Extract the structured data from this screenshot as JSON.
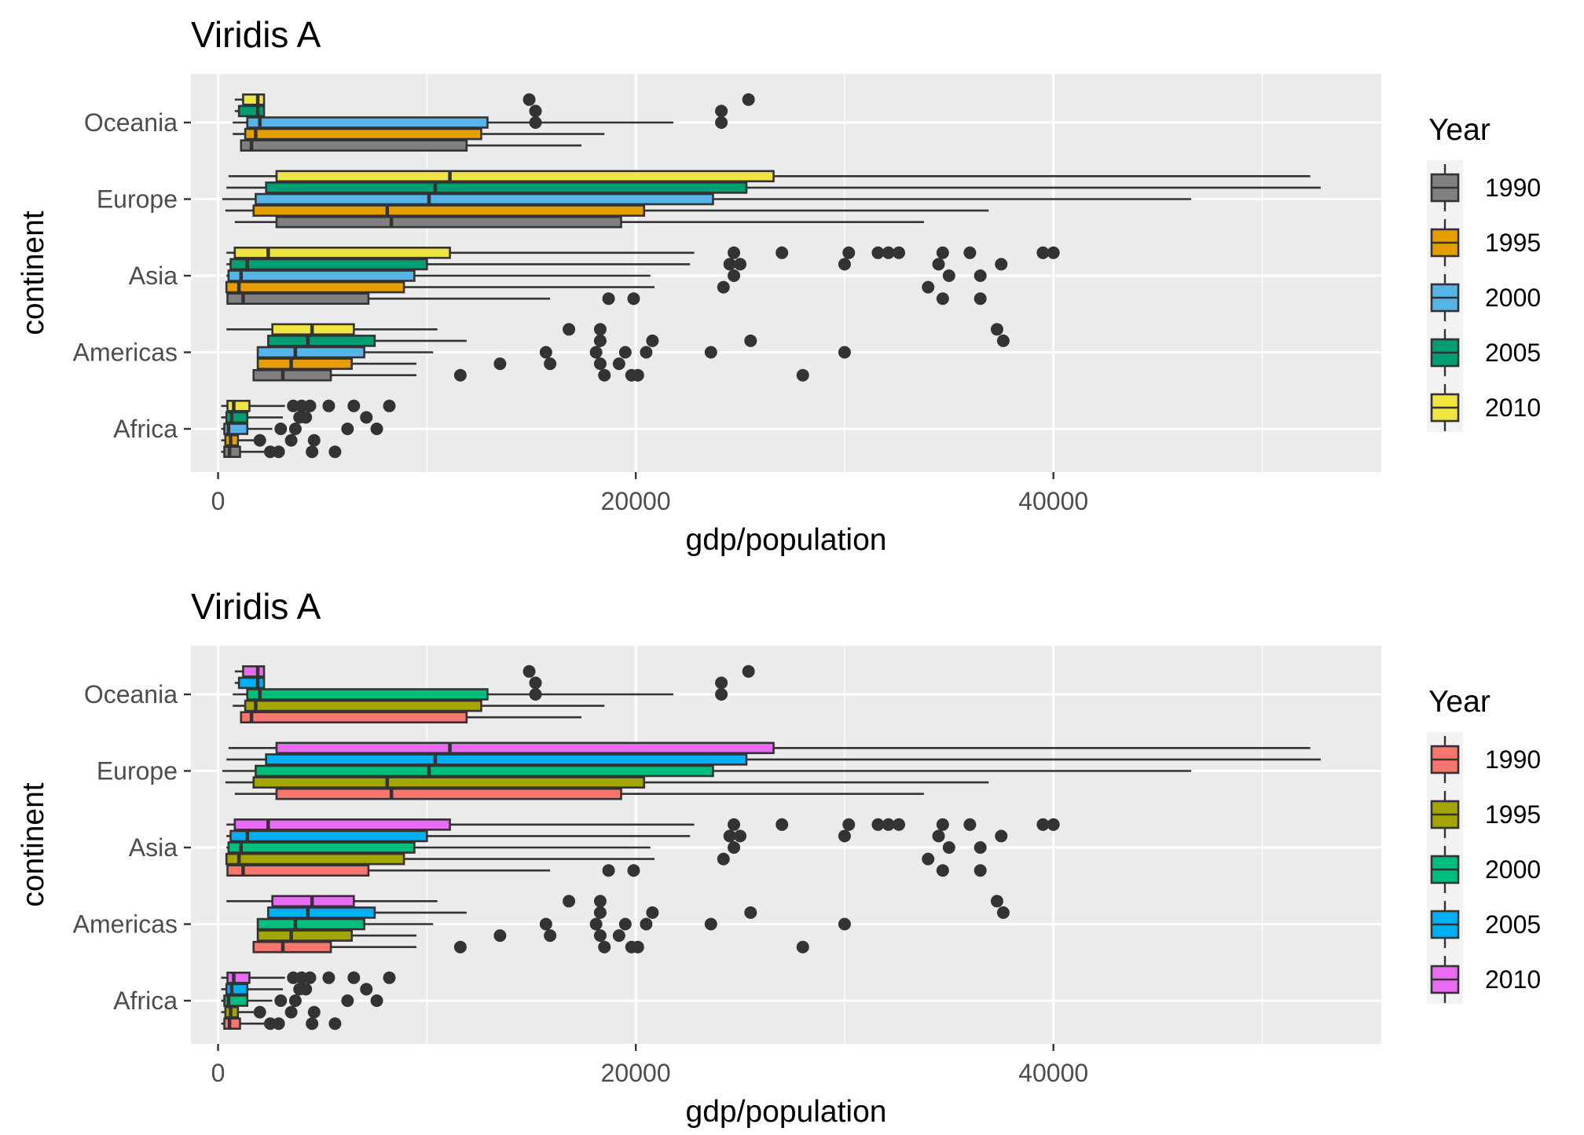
{
  "chart_data": [
    {
      "type": "boxplot",
      "orientation": "horizontal",
      "title": "Viridis A",
      "xlabel": "gdp/population",
      "ylabel": "continent",
      "xlim": [
        -1300,
        55700
      ],
      "xticks": [
        0,
        20000,
        40000
      ],
      "xtick_labels": [
        "0",
        "20000",
        "40000"
      ],
      "categories": [
        "Africa",
        "Americas",
        "Asia",
        "Europe",
        "Oceania"
      ],
      "grid": true,
      "legend": {
        "title": "Year",
        "position": "right",
        "entries": [
          {
            "label": "1990",
            "color": "#808080"
          },
          {
            "label": "1995",
            "color": "#E69F00"
          },
          {
            "label": "2000",
            "color": "#56B4E9"
          },
          {
            "label": "2005",
            "color": "#009E73"
          },
          {
            "label": "2010",
            "color": "#F0E442"
          }
        ]
      },
      "series": [
        {
          "name": "1990",
          "boxes": [
            {
              "category": "Africa",
              "whisker_low": 150,
              "q1": 300,
              "median": 550,
              "q3": 1050,
              "whisker_high": 2300,
              "outliers": [
                2500,
                2900,
                4500,
                5600
              ]
            },
            {
              "category": "Americas",
              "whisker_low": 1700,
              "q1": 1700,
              "median": 3100,
              "q3": 5400,
              "whisker_high": 9500,
              "outliers": [
                11600,
                18500,
                19800,
                20100,
                28000
              ]
            },
            {
              "category": "Asia",
              "whisker_low": 450,
              "q1": 450,
              "median": 1200,
              "q3": 7200,
              "whisker_high": 15900,
              "outliers": [
                18700,
                19900,
                34700,
                36500
              ]
            },
            {
              "category": "Europe",
              "whisker_low": 800,
              "q1": 2800,
              "median": 8300,
              "q3": 19300,
              "whisker_high": 33800,
              "outliers": []
            },
            {
              "category": "Oceania",
              "whisker_low": 1100,
              "q1": 1100,
              "median": 1600,
              "q3": 11900,
              "whisker_high": 17400,
              "outliers": []
            }
          ]
        },
        {
          "name": "1995",
          "boxes": [
            {
              "category": "Africa",
              "whisker_low": 150,
              "q1": 350,
              "median": 600,
              "q3": 950,
              "whisker_high": 2100,
              "outliers": [
                2000,
                3500,
                4600
              ]
            },
            {
              "category": "Americas",
              "whisker_low": 1900,
              "q1": 1900,
              "median": 3500,
              "q3": 6400,
              "whisker_high": 9500,
              "outliers": [
                13500,
                15900,
                18300,
                19200
              ]
            },
            {
              "category": "Asia",
              "whisker_low": 400,
              "q1": 400,
              "median": 1000,
              "q3": 8900,
              "whisker_high": 20900,
              "outliers": [
                24200,
                34000
              ]
            },
            {
              "category": "Europe",
              "whisker_low": 350,
              "q1": 1700,
              "median": 8100,
              "q3": 20400,
              "whisker_high": 36900,
              "outliers": []
            },
            {
              "category": "Oceania",
              "whisker_low": 700,
              "q1": 1300,
              "median": 1800,
              "q3": 12600,
              "whisker_high": 18500,
              "outliers": []
            }
          ]
        },
        {
          "name": "2000",
          "boxes": [
            {
              "category": "Africa",
              "whisker_low": 150,
              "q1": 300,
              "median": 500,
              "q3": 1400,
              "whisker_high": 2600,
              "outliers": [
                3000,
                3700,
                6200,
                7600
              ]
            },
            {
              "category": "Americas",
              "whisker_low": 1900,
              "q1": 1900,
              "median": 3700,
              "q3": 7000,
              "whisker_high": 10300,
              "outliers": [
                15700,
                18100,
                19500,
                20500,
                23600,
                30000
              ]
            },
            {
              "category": "Asia",
              "whisker_low": 400,
              "q1": 500,
              "median": 1100,
              "q3": 9400,
              "whisker_high": 20700,
              "outliers": [
                24700,
                35000,
                36500
              ]
            },
            {
              "category": "Europe",
              "whisker_low": 200,
              "q1": 1800,
              "median": 10100,
              "q3": 23700,
              "whisker_high": 46600,
              "outliers": []
            },
            {
              "category": "Oceania",
              "whisker_low": 700,
              "q1": 1400,
              "median": 2000,
              "q3": 12900,
              "whisker_high": 21800,
              "outliers": [
                15200,
                24100
              ]
            }
          ]
        },
        {
          "name": "2005",
          "boxes": [
            {
              "category": "Africa",
              "whisker_low": 150,
              "q1": 400,
              "median": 650,
              "q3": 1400,
              "whisker_high": 3100,
              "outliers": [
                3900,
                4200,
                7100
              ]
            },
            {
              "category": "Americas",
              "whisker_low": 2400,
              "q1": 2400,
              "median": 4300,
              "q3": 7500,
              "whisker_high": 11900,
              "outliers": [
                18300,
                20800,
                25500,
                37600
              ]
            },
            {
              "category": "Asia",
              "whisker_low": 400,
              "q1": 600,
              "median": 1400,
              "q3": 10000,
              "whisker_high": 22600,
              "outliers": [
                24500,
                25000,
                30000,
                34500,
                37500
              ]
            },
            {
              "category": "Europe",
              "whisker_low": 400,
              "q1": 2300,
              "median": 10400,
              "q3": 25300,
              "whisker_high": 52800,
              "outliers": []
            },
            {
              "category": "Oceania",
              "whisker_low": 800,
              "q1": 1000,
              "median": 1900,
              "q3": 2200,
              "whisker_high": 2200,
              "outliers": [
                15200,
                24100
              ]
            }
          ]
        },
        {
          "name": "2010",
          "boxes": [
            {
              "category": "Africa",
              "whisker_low": 150,
              "q1": 450,
              "median": 750,
              "q3": 1500,
              "whisker_high": 3200,
              "outliers": [
                3600,
                4000,
                4400,
                5300,
                6500,
                8200
              ]
            },
            {
              "category": "Americas",
              "whisker_low": 400,
              "q1": 2600,
              "median": 4500,
              "q3": 6500,
              "whisker_high": 10500,
              "outliers": [
                16800,
                18300,
                37300
              ]
            },
            {
              "category": "Asia",
              "whisker_low": 400,
              "q1": 800,
              "median": 2400,
              "q3": 11100,
              "whisker_high": 22800,
              "outliers": [
                24700,
                27000,
                30200,
                31600,
                32100,
                32600,
                34700,
                36000,
                39500,
                40000
              ]
            },
            {
              "category": "Europe",
              "whisker_low": 500,
              "q1": 2800,
              "median": 11100,
              "q3": 26600,
              "whisker_high": 52300,
              "outliers": []
            },
            {
              "category": "Oceania",
              "whisker_low": 800,
              "q1": 1200,
              "median": 1900,
              "q3": 2200,
              "whisker_high": 2200,
              "outliers": [
                14900,
                25400
              ]
            }
          ]
        }
      ]
    },
    {
      "type": "boxplot",
      "orientation": "horizontal",
      "title": "Viridis A",
      "xlabel": "gdp/population",
      "ylabel": "continent",
      "xlim": [
        -1300,
        55700
      ],
      "xticks": [
        0,
        20000,
        40000
      ],
      "xtick_labels": [
        "0",
        "20000",
        "40000"
      ],
      "categories": [
        "Africa",
        "Americas",
        "Asia",
        "Europe",
        "Oceania"
      ],
      "grid": true,
      "legend": {
        "title": "Year",
        "position": "right",
        "entries": [
          {
            "label": "1990",
            "color": "#F8766D"
          },
          {
            "label": "1995",
            "color": "#A3A500"
          },
          {
            "label": "2000",
            "color": "#00BF7D"
          },
          {
            "label": "2005",
            "color": "#00B0F6"
          },
          {
            "label": "2010",
            "color": "#E76BF3"
          }
        ]
      },
      "series": [
        {
          "name": "1990",
          "boxes": [
            {
              "category": "Africa",
              "whisker_low": 150,
              "q1": 300,
              "median": 550,
              "q3": 1050,
              "whisker_high": 2300,
              "outliers": [
                2500,
                2900,
                4500,
                5600
              ]
            },
            {
              "category": "Americas",
              "whisker_low": 1700,
              "q1": 1700,
              "median": 3100,
              "q3": 5400,
              "whisker_high": 9500,
              "outliers": [
                11600,
                18500,
                19800,
                20100,
                28000
              ]
            },
            {
              "category": "Asia",
              "whisker_low": 450,
              "q1": 450,
              "median": 1200,
              "q3": 7200,
              "whisker_high": 15900,
              "outliers": [
                18700,
                19900,
                34700,
                36500
              ]
            },
            {
              "category": "Europe",
              "whisker_low": 800,
              "q1": 2800,
              "median": 8300,
              "q3": 19300,
              "whisker_high": 33800,
              "outliers": []
            },
            {
              "category": "Oceania",
              "whisker_low": 1100,
              "q1": 1100,
              "median": 1600,
              "q3": 11900,
              "whisker_high": 17400,
              "outliers": []
            }
          ]
        },
        {
          "name": "1995",
          "boxes": [
            {
              "category": "Africa",
              "whisker_low": 150,
              "q1": 350,
              "median": 600,
              "q3": 950,
              "whisker_high": 2100,
              "outliers": [
                2000,
                3500,
                4600
              ]
            },
            {
              "category": "Americas",
              "whisker_low": 1900,
              "q1": 1900,
              "median": 3500,
              "q3": 6400,
              "whisker_high": 9500,
              "outliers": [
                13500,
                15900,
                18300,
                19200
              ]
            },
            {
              "category": "Asia",
              "whisker_low": 400,
              "q1": 400,
              "median": 1000,
              "q3": 8900,
              "whisker_high": 20900,
              "outliers": [
                24200,
                34000
              ]
            },
            {
              "category": "Europe",
              "whisker_low": 350,
              "q1": 1700,
              "median": 8100,
              "q3": 20400,
              "whisker_high": 36900,
              "outliers": []
            },
            {
              "category": "Oceania",
              "whisker_low": 700,
              "q1": 1300,
              "median": 1800,
              "q3": 12600,
              "whisker_high": 18500,
              "outliers": []
            }
          ]
        },
        {
          "name": "2000",
          "boxes": [
            {
              "category": "Africa",
              "whisker_low": 150,
              "q1": 300,
              "median": 500,
              "q3": 1400,
              "whisker_high": 2600,
              "outliers": [
                3000,
                3700,
                6200,
                7600
              ]
            },
            {
              "category": "Americas",
              "whisker_low": 1900,
              "q1": 1900,
              "median": 3700,
              "q3": 7000,
              "whisker_high": 10300,
              "outliers": [
                15700,
                18100,
                19500,
                20500,
                23600,
                30000
              ]
            },
            {
              "category": "Asia",
              "whisker_low": 400,
              "q1": 500,
              "median": 1100,
              "q3": 9400,
              "whisker_high": 20700,
              "outliers": [
                24700,
                35000,
                36500
              ]
            },
            {
              "category": "Europe",
              "whisker_low": 200,
              "q1": 1800,
              "median": 10100,
              "q3": 23700,
              "whisker_high": 46600,
              "outliers": []
            },
            {
              "category": "Oceania",
              "whisker_low": 700,
              "q1": 1400,
              "median": 2000,
              "q3": 12900,
              "whisker_high": 21800,
              "outliers": [
                15200,
                24100
              ]
            }
          ]
        },
        {
          "name": "2005",
          "boxes": [
            {
              "category": "Africa",
              "whisker_low": 150,
              "q1": 400,
              "median": 650,
              "q3": 1400,
              "whisker_high": 3100,
              "outliers": [
                3900,
                4200,
                7100
              ]
            },
            {
              "category": "Americas",
              "whisker_low": 2400,
              "q1": 2400,
              "median": 4300,
              "q3": 7500,
              "whisker_high": 11900,
              "outliers": [
                18300,
                20800,
                25500,
                37600
              ]
            },
            {
              "category": "Asia",
              "whisker_low": 400,
              "q1": 600,
              "median": 1400,
              "q3": 10000,
              "whisker_high": 22600,
              "outliers": [
                24500,
                25000,
                30000,
                34500,
                37500
              ]
            },
            {
              "category": "Europe",
              "whisker_low": 400,
              "q1": 2300,
              "median": 10400,
              "q3": 25300,
              "whisker_high": 52800,
              "outliers": []
            },
            {
              "category": "Oceania",
              "whisker_low": 800,
              "q1": 1000,
              "median": 1900,
              "q3": 2200,
              "whisker_high": 2200,
              "outliers": [
                15200,
                24100
              ]
            }
          ]
        },
        {
          "name": "2010",
          "boxes": [
            {
              "category": "Africa",
              "whisker_low": 150,
              "q1": 450,
              "median": 750,
              "q3": 1500,
              "whisker_high": 3200,
              "outliers": [
                3600,
                4000,
                4400,
                5300,
                6500,
                8200
              ]
            },
            {
              "category": "Americas",
              "whisker_low": 400,
              "q1": 2600,
              "median": 4500,
              "q3": 6500,
              "whisker_high": 10500,
              "outliers": [
                16800,
                18300,
                37300
              ]
            },
            {
              "category": "Asia",
              "whisker_low": 400,
              "q1": 800,
              "median": 2400,
              "q3": 11100,
              "whisker_high": 22800,
              "outliers": [
                24700,
                27000,
                30200,
                31600,
                32100,
                32600,
                34700,
                36000,
                39500,
                40000
              ]
            },
            {
              "category": "Europe",
              "whisker_low": 500,
              "q1": 2800,
              "median": 11100,
              "q3": 26600,
              "whisker_high": 52300,
              "outliers": []
            },
            {
              "category": "Oceania",
              "whisker_low": 800,
              "q1": 1200,
              "median": 1900,
              "q3": 2200,
              "whisker_high": 2200,
              "outliers": [
                14900,
                25400
              ]
            }
          ]
        }
      ]
    }
  ]
}
